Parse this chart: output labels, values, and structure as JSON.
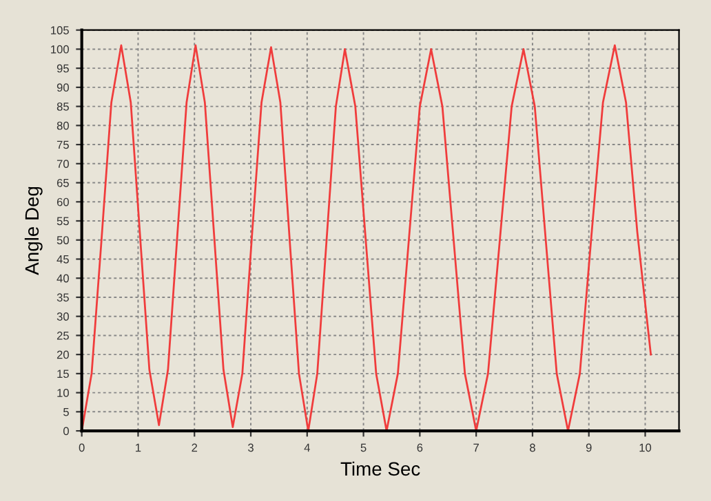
{
  "chart_data": {
    "type": "line",
    "xlabel": "Time Sec",
    "ylabel": "Angle Deg",
    "series": [
      {
        "color": "#f03c3c",
        "x": [
          0,
          0.175,
          0.35,
          0.525,
          0.7,
          0.87,
          1.035,
          1.2,
          1.37,
          1.53,
          1.695,
          1.86,
          2.02,
          2.185,
          2.35,
          2.515,
          2.68,
          2.85,
          3.02,
          3.19,
          3.36,
          3.525,
          3.69,
          3.855,
          4.02,
          4.18,
          4.345,
          4.51,
          4.67,
          4.855,
          5.04,
          5.225,
          5.41,
          5.61,
          5.805,
          6.0,
          6.2,
          6.4,
          6.6,
          6.8,
          7.0,
          7.21,
          7.42,
          7.63,
          7.84,
          8.04,
          8.235,
          8.43,
          8.63,
          8.84,
          9.045,
          9.25,
          9.46,
          9.66,
          9.86,
          10.1
        ],
        "values": [
          0,
          15,
          50,
          86,
          101,
          86,
          51,
          16,
          1.5,
          16,
          51,
          86,
          101,
          86,
          51,
          16,
          1,
          15,
          51,
          86,
          100.5,
          86,
          50,
          15,
          0,
          15,
          50,
          85,
          100,
          85,
          50,
          15,
          0,
          15,
          50,
          85,
          100,
          85,
          50,
          15,
          0,
          15,
          50,
          85,
          100,
          85,
          50,
          15,
          0,
          15,
          51,
          86,
          101,
          86,
          52,
          20
        ]
      }
    ],
    "xlim": [
      0,
      10.6
    ],
    "ylim": [
      0,
      105
    ],
    "xticks": [
      0,
      1,
      2,
      3,
      4,
      5,
      6,
      7,
      8,
      9,
      10
    ],
    "yticks": [
      0,
      5,
      10,
      15,
      20,
      25,
      30,
      35,
      40,
      45,
      50,
      55,
      60,
      65,
      70,
      75,
      80,
      85,
      90,
      95,
      100,
      105
    ],
    "grid": true,
    "legend": false,
    "marker": "none",
    "line_style": "solid"
  }
}
